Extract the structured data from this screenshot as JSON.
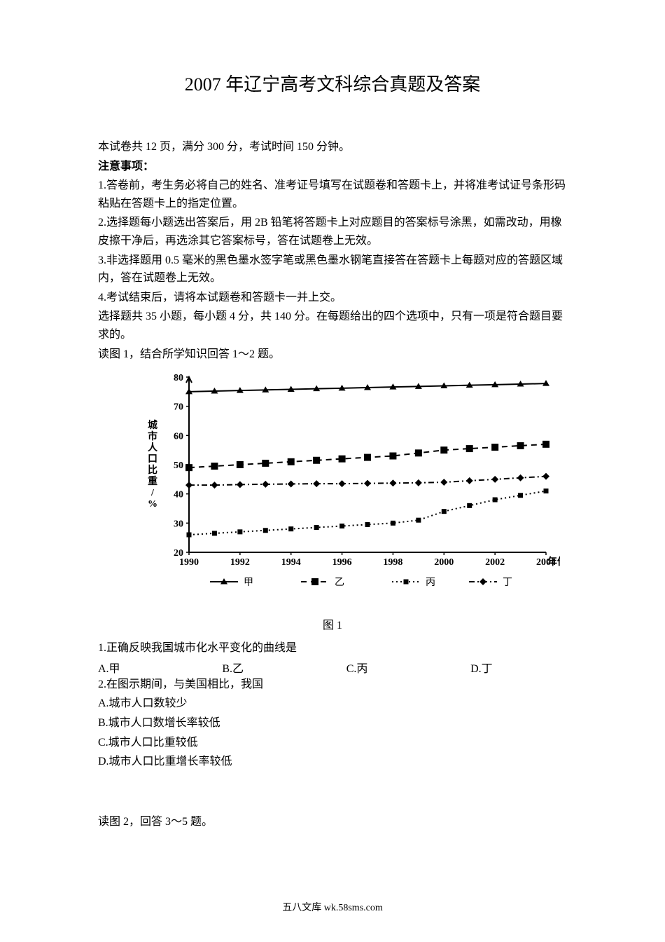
{
  "title": "2007 年辽宁高考文科综合真题及答案",
  "intro": "本试卷共 12 页，满分 300 分，考试时间 150 分钟。",
  "notice_header": "注意事项：",
  "notice_1": "1.答卷前，考生务必将自己的姓名、准考证号填写在试题卷和答题卡上，并将准考试证号条形码粘贴在答题卡上的指定位置。",
  "notice_2": "2.选择题每小题选出答案后，用 2B 铅笔将答题卡上对应题目的答案标号涂黑，如需改动，用橡皮擦干净后，再选涂其它答案标号，答在试题卷上无效。",
  "notice_3": "3.非选择题用 0.5 毫米的黑色墨水签字笔或黑色墨水钢笔直接答在答题卡上每题对应的答题区域内，答在试题卷上无效。",
  "notice_4": "4.考试结束后，请将本试题卷和答题卡一并上交。",
  "mc_intro": "选择题共 35 小题，每小题 4 分，共 140 分。在每题给出的四个选项中，只有一项是符合题目要求的。",
  "read_fig1": "读图 1，结合所学知识回答 1～2 题。",
  "fig1_label": "图 1",
  "q1_stem": "1.正确反映我国城市化水平变化的曲线是",
  "q1_a": "A.甲",
  "q1_b": "B.乙",
  "q1_c": "C.丙",
  "q1_d": "D.丁",
  "q2_stem": "2.在图示期间，与美国相比，我国",
  "q2_a": "A.城市人口数较少",
  "q2_b": "B.城市人口数增长率较低",
  "q2_c": "C.城市人口比重较低",
  "q2_d": "D.城市人口比重增长率较低",
  "read_fig2": "读图 2，回答 3～5 题。",
  "footer": "五八文库 wk.58sms.com",
  "chart": {
    "type": "line",
    "ylabel": "城市人口比重/%",
    "xlabel": "年份",
    "xlim": [
      1990,
      2004
    ],
    "ylim": [
      20,
      80
    ],
    "xtick_step": 2,
    "ytick_step": 10,
    "xticks": [
      1990,
      1992,
      1994,
      1996,
      1998,
      2000,
      2002,
      2004
    ],
    "yticks": [
      20,
      30,
      40,
      50,
      60,
      70,
      80
    ],
    "background_color": "#ffffff",
    "axis_color": "#000000",
    "line_color": "#000000",
    "line_width": 2,
    "marker_size": 6,
    "label_fontsize": 14,
    "tick_fontsize": 14,
    "legend": {
      "items": [
        {
          "label": "甲",
          "marker": "triangle",
          "dash": "solid"
        },
        {
          "label": "乙",
          "marker": "square",
          "dash": "dash"
        },
        {
          "label": "丙",
          "marker": "square-small",
          "dash": "dot"
        },
        {
          "label": "丁",
          "marker": "diamond",
          "dash": "dashdot"
        }
      ]
    },
    "series": {
      "jia": {
        "marker": "triangle",
        "dash": "solid",
        "x": [
          1990,
          1991,
          1992,
          1993,
          1994,
          1995,
          1996,
          1997,
          1998,
          1999,
          2000,
          2001,
          2002,
          2003,
          2004
        ],
        "y": [
          75,
          75.2,
          75.4,
          75.6,
          75.8,
          76,
          76.2,
          76.4,
          76.6,
          76.8,
          77,
          77.2,
          77.4,
          77.6,
          77.8
        ]
      },
      "yi": {
        "marker": "square",
        "dash": "dash",
        "x": [
          1990,
          1991,
          1992,
          1993,
          1994,
          1995,
          1996,
          1997,
          1998,
          1999,
          2000,
          2001,
          2002,
          2003,
          2004
        ],
        "y": [
          49,
          49.5,
          50,
          50.5,
          51,
          51.5,
          52,
          52.5,
          53,
          54,
          55,
          55.5,
          56,
          56.5,
          57
        ]
      },
      "bing": {
        "marker": "square-small",
        "dash": "dot",
        "x": [
          1990,
          1991,
          1992,
          1993,
          1994,
          1995,
          1996,
          1997,
          1998,
          1999,
          2000,
          2001,
          2002,
          2003,
          2004
        ],
        "y": [
          26,
          26.5,
          27,
          27.5,
          28,
          28.5,
          29,
          29.5,
          30,
          31,
          34,
          36,
          38,
          39.5,
          41
        ]
      },
      "ding": {
        "marker": "diamond",
        "dash": "dashdot",
        "x": [
          1990,
          1991,
          1992,
          1993,
          1994,
          1995,
          1996,
          1997,
          1998,
          1999,
          2000,
          2001,
          2002,
          2003,
          2004
        ],
        "y": [
          43,
          43,
          43.2,
          43.3,
          43.4,
          43.5,
          43.5,
          43.6,
          43.7,
          43.8,
          44,
          44.5,
          45,
          45.5,
          46
        ]
      }
    }
  }
}
